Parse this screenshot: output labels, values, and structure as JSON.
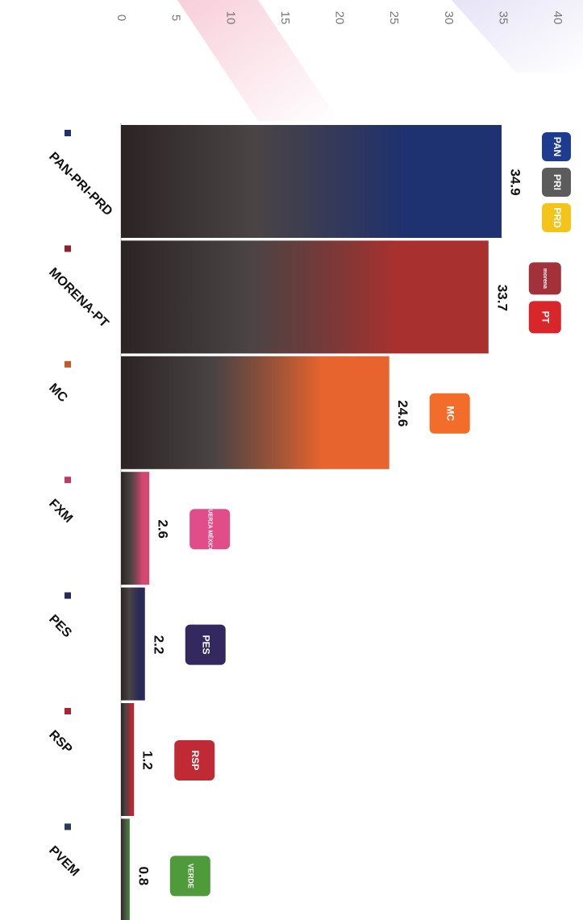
{
  "chart_data": {
    "type": "bar",
    "orientation": "horizontal",
    "title": "",
    "xlabel": "",
    "ylabel": "",
    "xlim": [
      0,
      40
    ],
    "ticks": [
      0,
      5,
      10,
      15,
      20,
      25,
      30,
      35,
      40
    ],
    "grid": false,
    "legend": "none",
    "categories": [
      "PAN-PRI-PRD",
      "MORENA-PT",
      "MC",
      "FXM",
      "PES",
      "RSP",
      "PVEM"
    ],
    "values": [
      34.9,
      33.7,
      24.6,
      2.6,
      2.2,
      1.2,
      0.8
    ],
    "value_labels": [
      "34.9",
      "33.7",
      "24.6",
      "2.6",
      "2.2",
      "1.2",
      "0.8"
    ],
    "colors": [
      "#1e3170",
      "#a8312f",
      "#e8642e",
      "#d4476f",
      "#2a2a58",
      "#b02a35",
      "#3f7a38"
    ],
    "dot_colors": [
      "#1e3170",
      "#8b2230",
      "#c45a2a",
      "#c03a63",
      "#2a2a58",
      "#a82532",
      "#2f3a5a"
    ],
    "logos": [
      [
        {
          "icon": "pan-logo",
          "text": "PAN",
          "bg": "#1d3c8f"
        },
        {
          "icon": "pri-logo",
          "text": "PRI",
          "bg": "#5c5c5c"
        },
        {
          "icon": "prd-logo",
          "text": "PRD",
          "bg": "#f3c41a"
        }
      ],
      [
        {
          "icon": "morena-logo",
          "text": "morena",
          "bg": "#a2313a"
        },
        {
          "icon": "pt-logo",
          "text": "PT",
          "bg": "#d8262b"
        }
      ],
      [
        {
          "icon": "mc-logo",
          "text": "MC",
          "bg": "#f26d2a"
        }
      ],
      [
        {
          "icon": "fxm-logo",
          "text": "FUERZA MÉXICO",
          "bg": "#e04d88"
        }
      ],
      [
        {
          "icon": "pes-logo",
          "text": "PES",
          "bg": "#33295f"
        }
      ],
      [
        {
          "icon": "rsp-logo",
          "text": "RSP",
          "bg": "#c02a35"
        }
      ],
      [
        {
          "icon": "pvem-logo",
          "text": "VERDE",
          "bg": "#4f9a3a"
        }
      ]
    ]
  }
}
